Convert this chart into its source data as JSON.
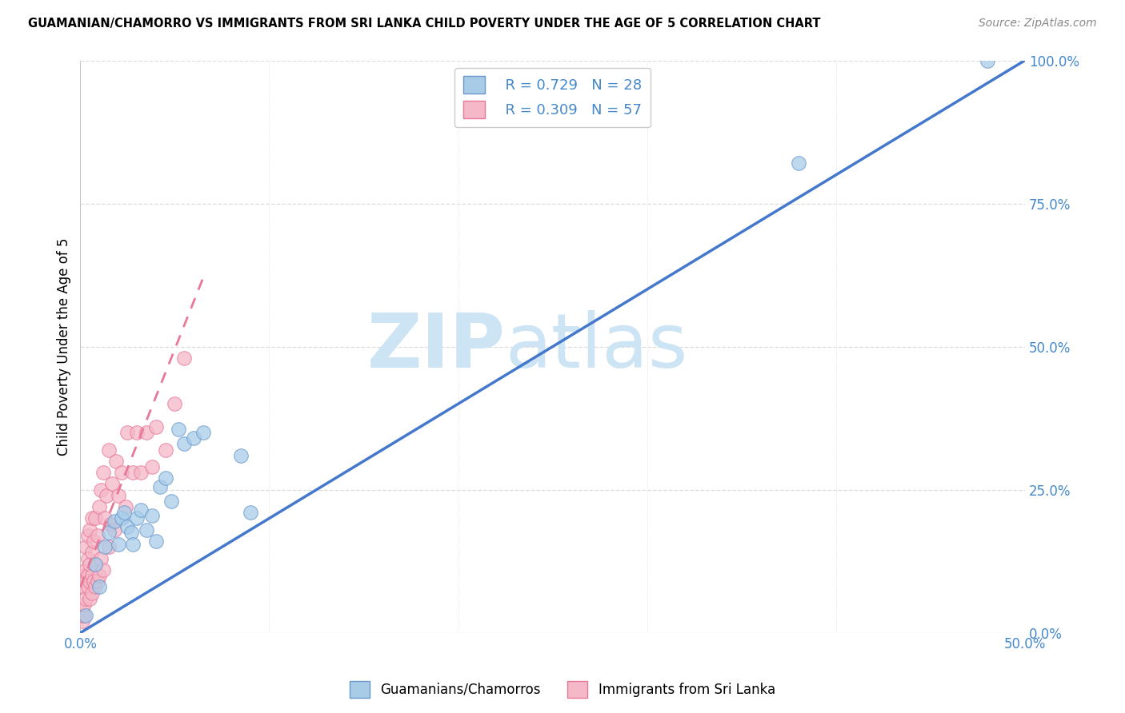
{
  "title": "GUAMANIAN/CHAMORRO VS IMMIGRANTS FROM SRI LANKA CHILD POVERTY UNDER THE AGE OF 5 CORRELATION CHART",
  "source": "Source: ZipAtlas.com",
  "ylabel": "Child Poverty Under the Age of 5",
  "xlim": [
    0.0,
    0.5
  ],
  "ylim": [
    0.0,
    1.0
  ],
  "xticks": [
    0.0,
    0.5
  ],
  "yticks": [
    0.0,
    0.25,
    0.5,
    0.75,
    1.0
  ],
  "xtick_labels": [
    "0.0%",
    "50.0%"
  ],
  "ytick_labels": [
    "0.0%",
    "25.0%",
    "50.0%",
    "75.0%",
    "100.0%"
  ],
  "blue_color": "#a8cce8",
  "pink_color": "#f4b8c8",
  "blue_edge": "#6898cc",
  "pink_edge": "#e87898",
  "line_blue": "#4478cc",
  "line_pink": "#e87898",
  "watermark_zip": "ZIP",
  "watermark_atlas": "atlas",
  "watermark_color": "#cce4f4",
  "legend_r_blue": "R = 0.729",
  "legend_n_blue": "N = 28",
  "legend_r_pink": "R = 0.309",
  "legend_n_pink": "N = 57",
  "tick_color": "#4488cc",
  "grid_color": "#dddddd",
  "blue_x": [
    0.003,
    0.008,
    0.01,
    0.013,
    0.015,
    0.018,
    0.02,
    0.022,
    0.023,
    0.025,
    0.027,
    0.028,
    0.03,
    0.032,
    0.035,
    0.038,
    0.04,
    0.042,
    0.045,
    0.048,
    0.052,
    0.055,
    0.06,
    0.065,
    0.085,
    0.09,
    0.38,
    0.48
  ],
  "blue_y": [
    0.03,
    0.12,
    0.08,
    0.15,
    0.175,
    0.195,
    0.155,
    0.2,
    0.21,
    0.185,
    0.175,
    0.155,
    0.2,
    0.215,
    0.18,
    0.205,
    0.16,
    0.255,
    0.27,
    0.23,
    0.355,
    0.33,
    0.34,
    0.35,
    0.31,
    0.21,
    0.82,
    1.0
  ],
  "pink_x": [
    0.001,
    0.001,
    0.001,
    0.002,
    0.002,
    0.002,
    0.002,
    0.003,
    0.003,
    0.003,
    0.003,
    0.004,
    0.004,
    0.004,
    0.004,
    0.005,
    0.005,
    0.005,
    0.005,
    0.006,
    0.006,
    0.006,
    0.006,
    0.007,
    0.007,
    0.008,
    0.008,
    0.008,
    0.009,
    0.009,
    0.01,
    0.01,
    0.011,
    0.011,
    0.012,
    0.012,
    0.013,
    0.014,
    0.015,
    0.015,
    0.016,
    0.017,
    0.018,
    0.019,
    0.02,
    0.022,
    0.024,
    0.025,
    0.028,
    0.03,
    0.032,
    0.035,
    0.038,
    0.04,
    0.045,
    0.05,
    0.055
  ],
  "pink_y": [
    0.02,
    0.03,
    0.04,
    0.03,
    0.05,
    0.08,
    0.1,
    0.06,
    0.09,
    0.11,
    0.15,
    0.08,
    0.1,
    0.13,
    0.17,
    0.06,
    0.09,
    0.12,
    0.18,
    0.07,
    0.1,
    0.14,
    0.2,
    0.09,
    0.16,
    0.08,
    0.12,
    0.2,
    0.09,
    0.17,
    0.1,
    0.22,
    0.13,
    0.25,
    0.11,
    0.28,
    0.2,
    0.24,
    0.15,
    0.32,
    0.19,
    0.26,
    0.18,
    0.3,
    0.24,
    0.28,
    0.22,
    0.35,
    0.28,
    0.35,
    0.28,
    0.35,
    0.29,
    0.36,
    0.32,
    0.4,
    0.48
  ],
  "blue_line_x": [
    -0.01,
    0.52
  ],
  "blue_line_y": [
    -0.02,
    1.04
  ],
  "pink_line_x": [
    0.0,
    0.065
  ],
  "pink_line_y": [
    0.08,
    0.62
  ]
}
